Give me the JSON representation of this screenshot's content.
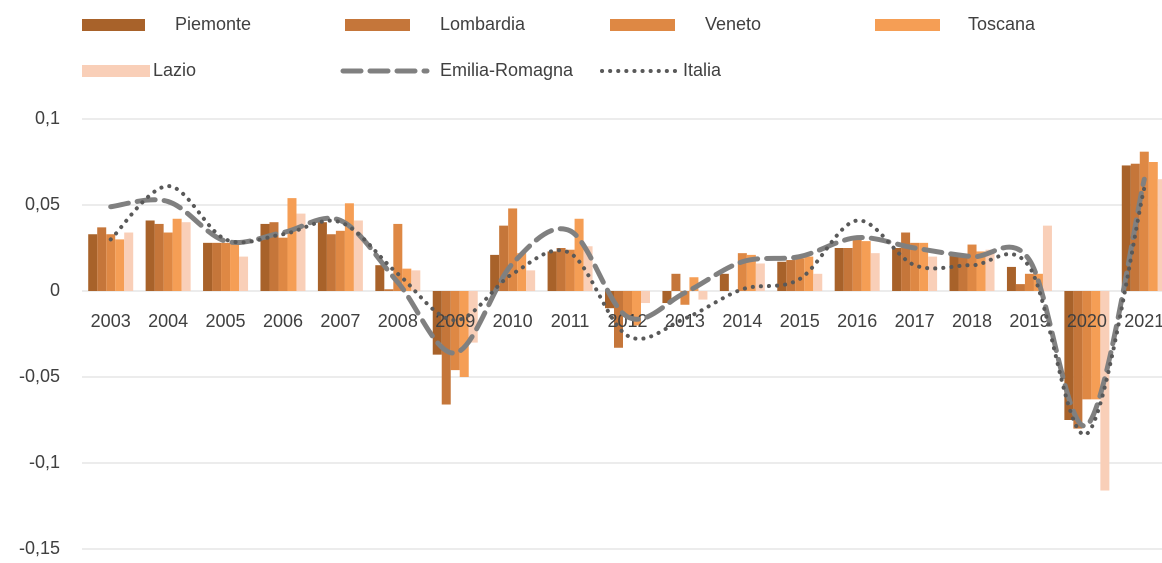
{
  "chart_data": {
    "type": "bar",
    "categories": [
      "2003",
      "2004",
      "2005",
      "2006",
      "2007",
      "2008",
      "2009",
      "2010",
      "2011",
      "2012",
      "2013",
      "2014",
      "2015",
      "2016",
      "2017",
      "2018",
      "2019",
      "2020",
      "2021"
    ],
    "series": [
      {
        "name": "Piemonte",
        "color": "#a8622a",
        "values": [
          0.033,
          0.041,
          0.028,
          0.039,
          0.04,
          0.015,
          -0.037,
          0.021,
          0.023,
          -0.01,
          -0.007,
          0.01,
          0.017,
          0.025,
          0.025,
          0.021,
          0.014,
          -0.075,
          0.073
        ]
      },
      {
        "name": "Lombardia",
        "color": "#c5763a",
        "values": [
          0.037,
          0.039,
          0.028,
          0.04,
          0.033,
          0.001,
          -0.066,
          0.038,
          0.025,
          -0.033,
          0.01,
          0.0,
          0.018,
          0.025,
          0.034,
          0.02,
          0.004,
          -0.08,
          0.074
        ]
      },
      {
        "name": "Veneto",
        "color": "#de8844",
        "values": [
          0.033,
          0.034,
          0.028,
          0.031,
          0.035,
          0.039,
          -0.046,
          0.048,
          0.024,
          -0.015,
          -0.008,
          0.022,
          0.019,
          0.03,
          0.028,
          0.027,
          0.01,
          -0.063,
          0.081
        ]
      },
      {
        "name": "Toscana",
        "color": "#f59e55",
        "values": [
          0.03,
          0.042,
          0.028,
          0.054,
          0.051,
          0.013,
          -0.05,
          0.022,
          0.042,
          -0.02,
          0.008,
          0.021,
          0.02,
          0.029,
          0.028,
          0.023,
          0.01,
          -0.063,
          0.075
        ]
      },
      {
        "name": "Lazio",
        "color": "#f9cfb8",
        "values": [
          0.034,
          0.04,
          0.02,
          0.045,
          0.041,
          0.012,
          -0.03,
          0.012,
          0.026,
          -0.007,
          -0.005,
          0.016,
          0.01,
          0.022,
          0.02,
          0.024,
          0.038,
          -0.116,
          0.065
        ]
      },
      {
        "name": "Emilia-Romagna",
        "type": "line",
        "style": "dashed",
        "color": "#808080",
        "values": [
          0.049,
          0.052,
          0.029,
          0.034,
          0.041,
          0.005,
          -0.036,
          0.016,
          0.035,
          -0.015,
          -0.001,
          0.017,
          0.02,
          0.031,
          0.025,
          0.02,
          0.018,
          -0.078,
          0.065
        ]
      },
      {
        "name": "Italia",
        "type": "line",
        "style": "dotted",
        "color": "#595959",
        "values": [
          0.03,
          0.061,
          0.03,
          0.033,
          0.04,
          0.01,
          -0.017,
          0.01,
          0.022,
          -0.026,
          -0.016,
          0.001,
          0.007,
          0.041,
          0.015,
          0.015,
          0.014,
          -0.083,
          0.06
        ]
      }
    ],
    "ylim": [
      -0.15,
      0.1
    ],
    "yticks": [
      {
        "value": -0.15,
        "label": "-0,15"
      },
      {
        "value": -0.1,
        "label": "-0,1"
      },
      {
        "value": -0.05,
        "label": "-0,05"
      },
      0,
      {
        "value": 0.05,
        "label": "0,05"
      },
      {
        "value": 0.1,
        "label": "0,1"
      }
    ],
    "grid": true,
    "legend": "top"
  }
}
